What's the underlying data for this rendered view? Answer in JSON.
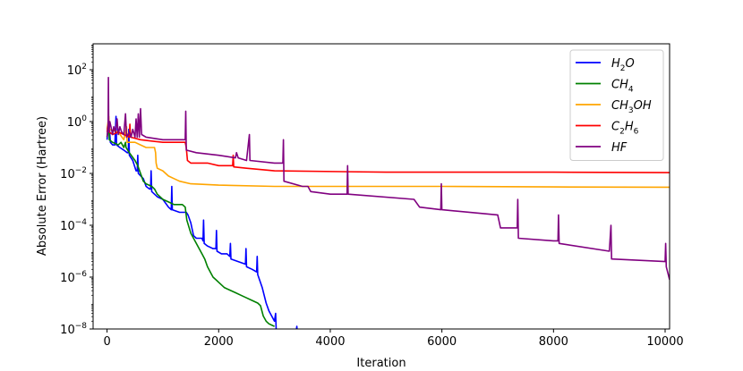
{
  "chart_data": {
    "type": "line",
    "title": "",
    "xlabel": "Iteration",
    "ylabel": "Absolute Error (Hartree)",
    "xlim": [
      -250,
      10080
    ],
    "ylim_log10": [
      -8,
      3
    ],
    "yscale": "log",
    "x_ticks": [
      0,
      2000,
      4000,
      6000,
      8000,
      10000
    ],
    "x_tick_labels": [
      "0",
      "2000",
      "4000",
      "6000",
      "8000",
      "10000"
    ],
    "y_ticks_log10": [
      2,
      0,
      -2,
      -4,
      -6,
      -8
    ],
    "y_tick_labels": [
      {
        "base": "10",
        "exp": "2"
      },
      {
        "base": "10",
        "exp": "0"
      },
      {
        "base": "10",
        "exp": "−2"
      },
      {
        "base": "10",
        "exp": "−4"
      },
      {
        "base": "10",
        "exp": "−6"
      },
      {
        "base": "10",
        "exp": "−8"
      }
    ],
    "legend_position": "top-right",
    "legend": [
      {
        "main": "H",
        "sub": "2",
        "tail": "O",
        "color": "#0000ff"
      },
      {
        "main": "CH",
        "sub": "4",
        "tail": "",
        "color": "#008000"
      },
      {
        "main": "CH",
        "sub": "3",
        "tail": "OH",
        "color": "#ffa500"
      },
      {
        "main": "C",
        "sub": "2",
        "tail": "H",
        "sub2": "6",
        "color": "#ff0000"
      },
      {
        "main": "HF",
        "sub": "",
        "tail": "",
        "color": "#800080"
      }
    ],
    "series": [
      {
        "key": "h2o",
        "color": "#0000ff",
        "points": [
          [
            0,
            -0.7
          ],
          [
            30,
            0.1
          ],
          [
            60,
            -0.8
          ],
          [
            100,
            -0.9
          ],
          [
            140,
            -0.9
          ],
          [
            160,
            0.2
          ],
          [
            170,
            -0.9
          ],
          [
            230,
            -1.0
          ],
          [
            300,
            -1.1
          ],
          [
            360,
            -1.2
          ],
          [
            380,
            -1.2
          ],
          [
            390,
            -0.3
          ],
          [
            400,
            -1.3
          ],
          [
            460,
            -1.5
          ],
          [
            520,
            -1.9
          ],
          [
            540,
            -1.9
          ],
          [
            550,
            -1.3
          ],
          [
            560,
            -2.0
          ],
          [
            650,
            -2.2
          ],
          [
            700,
            -2.5
          ],
          [
            760,
            -2.6
          ],
          [
            780,
            -2.6
          ],
          [
            790,
            -1.9
          ],
          [
            800,
            -2.7
          ],
          [
            900,
            -2.9
          ],
          [
            1000,
            -3.0
          ],
          [
            1100,
            -3.3
          ],
          [
            1150,
            -3.4
          ],
          [
            1160,
            -2.5
          ],
          [
            1170,
            -3.4
          ],
          [
            1300,
            -3.5
          ],
          [
            1380,
            -3.5
          ],
          [
            1420,
            -3.5
          ],
          [
            1450,
            -3.6
          ],
          [
            1500,
            -3.9
          ],
          [
            1550,
            -4.4
          ],
          [
            1600,
            -4.5
          ],
          [
            1700,
            -4.5
          ],
          [
            1720,
            -4.6
          ],
          [
            1730,
            -3.8
          ],
          [
            1740,
            -4.7
          ],
          [
            1800,
            -4.8
          ],
          [
            1900,
            -4.9
          ],
          [
            1950,
            -4.9
          ],
          [
            1960,
            -4.2
          ],
          [
            1970,
            -5.0
          ],
          [
            2050,
            -5.1
          ],
          [
            2150,
            -5.1
          ],
          [
            2200,
            -5.2
          ],
          [
            2210,
            -4.7
          ],
          [
            2220,
            -5.3
          ],
          [
            2350,
            -5.4
          ],
          [
            2480,
            -5.5
          ],
          [
            2490,
            -4.9
          ],
          [
            2500,
            -5.6
          ],
          [
            2600,
            -5.7
          ],
          [
            2680,
            -5.8
          ],
          [
            2690,
            -5.2
          ],
          [
            2700,
            -5.9
          ],
          [
            2780,
            -6.4
          ],
          [
            2850,
            -7.0
          ],
          [
            2900,
            -7.3
          ],
          [
            2950,
            -7.5
          ],
          [
            3000,
            -7.7
          ],
          [
            3020,
            -7.4
          ],
          [
            3030,
            -8.0
          ],
          [
            3380,
            -8.2
          ],
          [
            3400,
            -7.9
          ],
          [
            3410,
            -8.2
          ]
        ]
      },
      {
        "key": "ch4",
        "color": "#008000",
        "points": [
          [
            0,
            -0.6
          ],
          [
            30,
            -0.1
          ],
          [
            40,
            -0.7
          ],
          [
            100,
            -0.8
          ],
          [
            200,
            -0.9
          ],
          [
            250,
            -0.8
          ],
          [
            300,
            -1.0
          ],
          [
            330,
            -0.8
          ],
          [
            340,
            -1.0
          ],
          [
            400,
            -1.2
          ],
          [
            500,
            -1.5
          ],
          [
            550,
            -1.7
          ],
          [
            600,
            -2.0
          ],
          [
            650,
            -2.3
          ],
          [
            700,
            -2.4
          ],
          [
            800,
            -2.5
          ],
          [
            850,
            -2.6
          ],
          [
            900,
            -2.8
          ],
          [
            1000,
            -3.0
          ],
          [
            1100,
            -3.1
          ],
          [
            1200,
            -3.2
          ],
          [
            1300,
            -3.2
          ],
          [
            1350,
            -3.2
          ],
          [
            1400,
            -3.3
          ],
          [
            1430,
            -3.8
          ],
          [
            1500,
            -4.3
          ],
          [
            1600,
            -4.7
          ],
          [
            1700,
            -5.1
          ],
          [
            1750,
            -5.3
          ],
          [
            1800,
            -5.6
          ],
          [
            1850,
            -5.8
          ],
          [
            1900,
            -6.0
          ],
          [
            1950,
            -6.1
          ],
          [
            2000,
            -6.2
          ],
          [
            2100,
            -6.4
          ],
          [
            2200,
            -6.5
          ],
          [
            2300,
            -6.6
          ],
          [
            2400,
            -6.7
          ],
          [
            2500,
            -6.8
          ],
          [
            2600,
            -6.9
          ],
          [
            2700,
            -7.0
          ],
          [
            2750,
            -7.1
          ],
          [
            2800,
            -7.5
          ],
          [
            2850,
            -7.7
          ],
          [
            2900,
            -7.8
          ],
          [
            3000,
            -7.9
          ]
        ]
      },
      {
        "key": "ch3oh",
        "color": "#ffa500",
        "points": [
          [
            0,
            -0.3
          ],
          [
            30,
            0.2
          ],
          [
            40,
            -0.3
          ],
          [
            200,
            -0.4
          ],
          [
            300,
            -0.7
          ],
          [
            350,
            -0.2
          ],
          [
            360,
            -0.8
          ],
          [
            500,
            -0.8
          ],
          [
            600,
            -0.9
          ],
          [
            700,
            -1.0
          ],
          [
            850,
            -1.0
          ],
          [
            870,
            -1.2
          ],
          [
            880,
            -1.6
          ],
          [
            900,
            -1.8
          ],
          [
            1000,
            -1.9
          ],
          [
            1100,
            -2.1
          ],
          [
            1200,
            -2.2
          ],
          [
            1300,
            -2.3
          ],
          [
            1500,
            -2.4
          ],
          [
            2000,
            -2.45
          ],
          [
            3000,
            -2.5
          ],
          [
            6000,
            -2.5
          ],
          [
            8000,
            -2.52
          ],
          [
            10080,
            -2.53
          ]
        ]
      },
      {
        "key": "c2h6",
        "color": "#ff0000",
        "points": [
          [
            0,
            -0.4
          ],
          [
            30,
            0.0
          ],
          [
            40,
            -0.4
          ],
          [
            100,
            -0.5
          ],
          [
            200,
            -0.4
          ],
          [
            300,
            -0.5
          ],
          [
            400,
            -0.6
          ],
          [
            410,
            -0.1
          ],
          [
            420,
            -0.6
          ],
          [
            600,
            -0.7
          ],
          [
            800,
            -0.75
          ],
          [
            1000,
            -0.8
          ],
          [
            1200,
            -0.8
          ],
          [
            1400,
            -0.8
          ],
          [
            1420,
            -1.0
          ],
          [
            1440,
            -1.5
          ],
          [
            1500,
            -1.6
          ],
          [
            1800,
            -1.6
          ],
          [
            2000,
            -1.7
          ],
          [
            2250,
            -1.7
          ],
          [
            2260,
            -1.3
          ],
          [
            2270,
            -1.75
          ],
          [
            2500,
            -1.8
          ],
          [
            3000,
            -1.9
          ],
          [
            5000,
            -1.95
          ],
          [
            8000,
            -1.95
          ],
          [
            10080,
            -1.97
          ]
        ]
      },
      {
        "key": "hf",
        "color": "#800080",
        "points": [
          [
            0,
            -0.6
          ],
          [
            20,
            -0.1
          ],
          [
            25,
            1.7
          ],
          [
            30,
            -0.4
          ],
          [
            50,
            0.0
          ],
          [
            80,
            -0.3
          ],
          [
            100,
            -0.5
          ],
          [
            120,
            -0.2
          ],
          [
            150,
            -0.4
          ],
          [
            180,
            0.1
          ],
          [
            200,
            -0.5
          ],
          [
            230,
            -0.2
          ],
          [
            260,
            -0.4
          ],
          [
            300,
            -0.5
          ],
          [
            330,
            0.3
          ],
          [
            350,
            -0.6
          ],
          [
            400,
            -0.4
          ],
          [
            430,
            -0.6
          ],
          [
            460,
            -0.3
          ],
          [
            500,
            -0.6
          ],
          [
            520,
            0.1
          ],
          [
            540,
            -0.6
          ],
          [
            560,
            0.3
          ],
          [
            580,
            -0.6
          ],
          [
            600,
            0.5
          ],
          [
            620,
            -0.5
          ],
          [
            700,
            -0.6
          ],
          [
            1000,
            -0.7
          ],
          [
            1400,
            -0.7
          ],
          [
            1410,
            0.4
          ],
          [
            1420,
            -1.1
          ],
          [
            1600,
            -1.2
          ],
          [
            2000,
            -1.3
          ],
          [
            2300,
            -1.4
          ],
          [
            2320,
            -1.2
          ],
          [
            2350,
            -1.4
          ],
          [
            2500,
            -1.5
          ],
          [
            2550,
            -0.5
          ],
          [
            2560,
            -1.5
          ],
          [
            3000,
            -1.6
          ],
          [
            3150,
            -1.6
          ],
          [
            3160,
            -0.7
          ],
          [
            3170,
            -2.3
          ],
          [
            3500,
            -2.5
          ],
          [
            3600,
            -2.5
          ],
          [
            3650,
            -2.7
          ],
          [
            4000,
            -2.8
          ],
          [
            4300,
            -2.8
          ],
          [
            4310,
            -1.7
          ],
          [
            4320,
            -2.8
          ],
          [
            5500,
            -3.0
          ],
          [
            5600,
            -3.3
          ],
          [
            5980,
            -3.4
          ],
          [
            5990,
            -2.4
          ],
          [
            6000,
            -3.4
          ],
          [
            7000,
            -3.6
          ],
          [
            7050,
            -4.1
          ],
          [
            7350,
            -4.1
          ],
          [
            7360,
            -3.0
          ],
          [
            7370,
            -4.5
          ],
          [
            8000,
            -4.6
          ],
          [
            8080,
            -4.6
          ],
          [
            8090,
            -3.6
          ],
          [
            8100,
            -4.7
          ],
          [
            9000,
            -5.0
          ],
          [
            9030,
            -4.0
          ],
          [
            9040,
            -5.3
          ],
          [
            10000,
            -5.4
          ],
          [
            10010,
            -4.7
          ],
          [
            10020,
            -5.6
          ],
          [
            10080,
            -6.1
          ]
        ]
      }
    ]
  }
}
